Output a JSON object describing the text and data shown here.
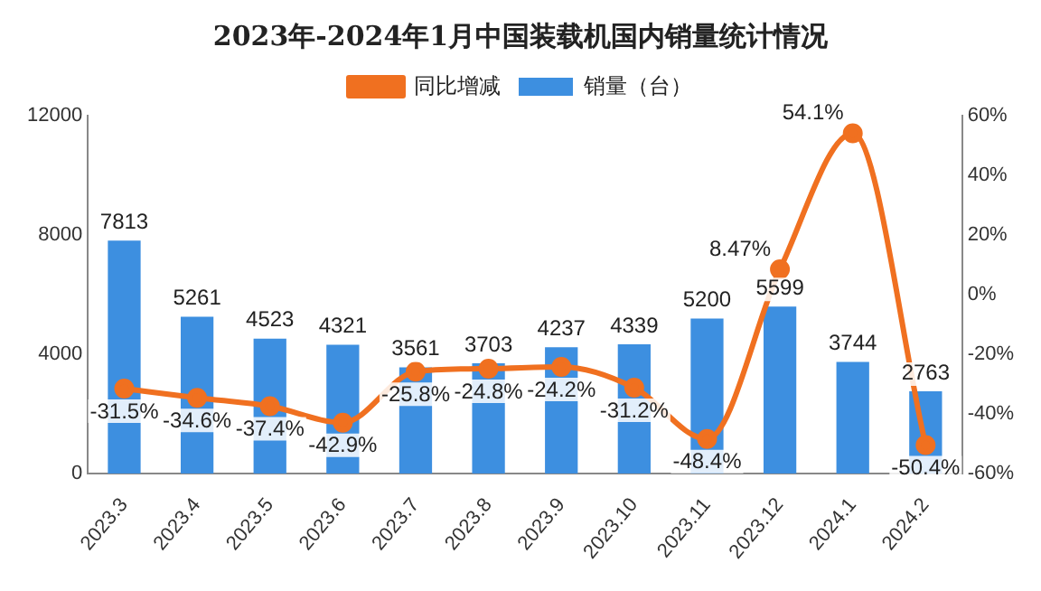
{
  "chart_data": {
    "type": "bar",
    "title": "2023年-2024年1月中国装载机国内销量统计情况",
    "categories": [
      "2023.3",
      "2023.4",
      "2023.5",
      "2023.6",
      "2023.7",
      "2023.8",
      "2023.9",
      "2023.10",
      "2023.11",
      "2023.12",
      "2024.1",
      "2024.2"
    ],
    "series": [
      {
        "name": "销量（台）",
        "color": "#3d8fe0",
        "values": [
          7813,
          5261,
          4523,
          4321,
          3561,
          3703,
          4237,
          4339,
          5200,
          5599,
          3744,
          2763
        ],
        "value_labels": [
          "7813",
          "5261",
          "4523",
          "4321",
          "3561",
          "3703",
          "4237",
          "4339",
          "5200",
          "5599",
          "3744",
          "2763"
        ]
      },
      {
        "name": "同比增减",
        "type": "line",
        "axis": "y2",
        "color": "#f07020",
        "marker": "circle",
        "values": [
          -31.5,
          -34.6,
          -37.4,
          -42.9,
          -25.8,
          -24.8,
          -24.2,
          -31.2,
          -48.4,
          8.47,
          54.1,
          -50.4
        ],
        "value_labels": [
          "-31.5%",
          "-34.6%",
          "-37.4%",
          "-42.9%",
          "-25.8%",
          "-24.8%",
          "-24.2%",
          "-31.2%",
          "-48.4%",
          "8.47%",
          "54.1%",
          "-50.4%"
        ]
      }
    ],
    "ylim": [
      0,
      12000
    ],
    "yticks": [
      0,
      4000,
      8000,
      12000
    ],
    "y2lim": [
      -60,
      60
    ],
    "y2ticks": [
      {
        "value": -60,
        "label": "-60%"
      },
      {
        "value": -40,
        "label": "-40%"
      },
      {
        "value": -20,
        "label": "-20%"
      },
      {
        "value": 0,
        "label": "0%"
      },
      {
        "value": 20,
        "label": "20%"
      },
      {
        "value": 40,
        "label": "40%"
      },
      {
        "value": 60,
        "label": "60%"
      }
    ],
    "legend": "top"
  }
}
